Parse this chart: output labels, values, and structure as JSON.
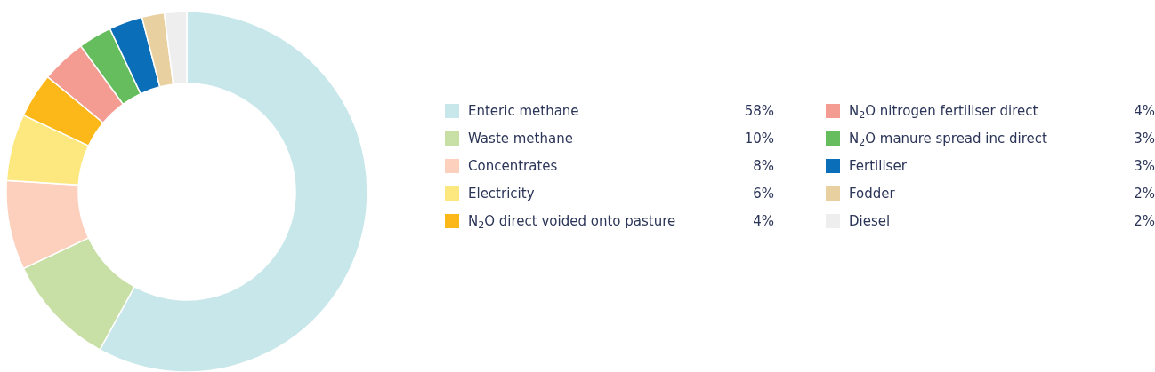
{
  "chart_data": {
    "type": "donut",
    "categories": [
      "Enteric methane",
      "Waste methane",
      "Concentrates",
      "Electricity",
      "N$_{2}$O direct voided onto pasture",
      "N$_{2}$O nitrogen fertiliser direct",
      "N$_{2}$O manure spread inc direct",
      "Fertiliser",
      "Fodder",
      "Diesel"
    ],
    "values": [
      58,
      10,
      8,
      6,
      4,
      4,
      3,
      3,
      2,
      2
    ],
    "value_labels": [
      "58%",
      "10%",
      "8%",
      "6%",
      "4%",
      "4%",
      "3%",
      "3%",
      "2%",
      "2%"
    ],
    "colors": [
      "#c8e7ea",
      "#c8e0a5",
      "#fdd0bd",
      "#fde880",
      "#fbb818",
      "#f49b92",
      "#66bd5d",
      "#0a6fb8",
      "#e8d0a0",
      "#eeeeee"
    ],
    "legend": "right"
  }
}
